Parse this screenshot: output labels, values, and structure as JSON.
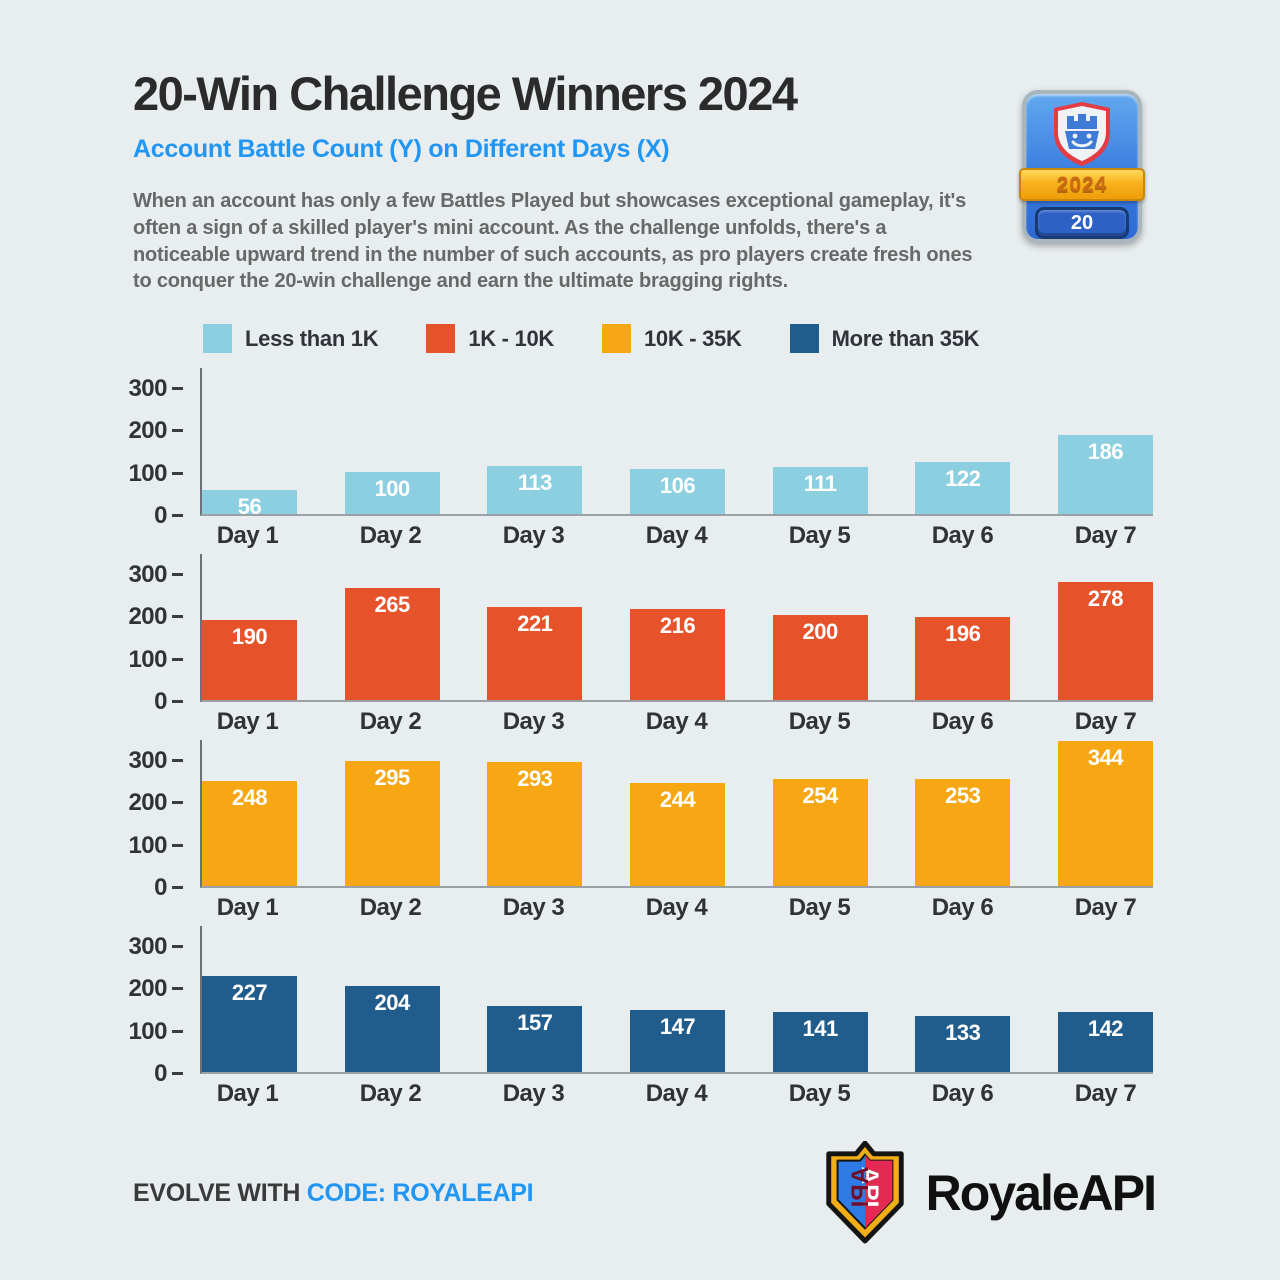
{
  "header": {
    "title": "20-Win Challenge Winners 2024",
    "subtitle": "Account Battle Count (Y) on Different Days (X)",
    "description": "When an account has only a few Battles Played but showcases exceptional gameplay, it's often a sign of a skilled player's mini account. As the challenge unfolds, there's a noticeable upward trend in the number of such accounts, as pro players create fresh ones to conquer the 20-win challenge and earn the ultimate bragging rights."
  },
  "badge": {
    "year": "2024",
    "wins": "20"
  },
  "legend": [
    {
      "label": "Less than 1K",
      "color": "#8bcfe0"
    },
    {
      "label": "1K - 10K",
      "color": "#e6522a"
    },
    {
      "label": "10K - 35K",
      "color": "#f7a714"
    },
    {
      "label": "More than 35K",
      "color": "#215d8c"
    }
  ],
  "chart_data": {
    "type": "bar",
    "title": "20-Win Challenge Winners 2024 — Account Battle Count (Y) on Different Days (X)",
    "categories": [
      "Day 1",
      "Day 2",
      "Day 3",
      "Day 4",
      "Day 5",
      "Day 6",
      "Day 7"
    ],
    "series": [
      {
        "name": "Less than 1K",
        "color": "#8bcfe0",
        "values": [
          56,
          100,
          113,
          106,
          111,
          122,
          186
        ]
      },
      {
        "name": "1K - 10K",
        "color": "#e6522a",
        "values": [
          190,
          265,
          221,
          216,
          200,
          196,
          278
        ]
      },
      {
        "name": "10K - 35K",
        "color": "#f7a714",
        "values": [
          248,
          295,
          293,
          244,
          254,
          253,
          344
        ]
      },
      {
        "name": "More than 35K",
        "color": "#215d8c",
        "values": [
          227,
          204,
          157,
          147,
          141,
          133,
          142
        ]
      }
    ],
    "yticks": [
      0,
      100,
      200,
      300
    ],
    "ylim": [
      0,
      350
    ],
    "grid": false,
    "legend_position": "top",
    "value_labels": "white, inside top of each bar",
    "layout": "four stacked single-series charts, one per legend bucket"
  },
  "footer": {
    "evolve_prefix": "EVOLVE WITH ",
    "evolve_code": "CODE: ROYALEAPI",
    "brand": "RoyaleAPI",
    "logo_letters": "API"
  }
}
